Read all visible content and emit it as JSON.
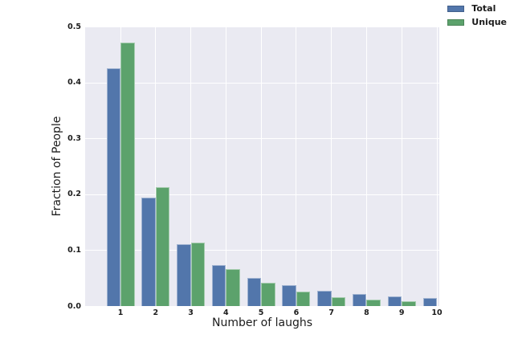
{
  "chart_data": {
    "type": "bar",
    "title": "",
    "xlabel": "Number of laughs",
    "ylabel": "Fraction of People",
    "categories": [
      "1",
      "2",
      "3",
      "4",
      "5",
      "6",
      "7",
      "8",
      "9",
      "10"
    ],
    "series": [
      {
        "name": "Total",
        "color": "#5276AB",
        "values": [
          0.425,
          0.194,
          0.11,
          0.073,
          0.05,
          0.038,
          0.027,
          0.022,
          0.017,
          0.014
        ]
      },
      {
        "name": "Unique",
        "color": "#5CA26C",
        "values": [
          0.472,
          0.212,
          0.114,
          0.066,
          0.041,
          0.026,
          0.016,
          0.011,
          0.008,
          0
        ]
      }
    ],
    "ylim": [
      0,
      0.5
    ],
    "yticks": [
      "0.0",
      "0.1",
      "0.2",
      "0.3",
      "0.4",
      "0.5"
    ],
    "grid": true,
    "grid_color": "#FFFFFF",
    "plot_background": "#EAEAF2",
    "figure_background": "#FFFFFF",
    "legend_position": "upper right"
  }
}
